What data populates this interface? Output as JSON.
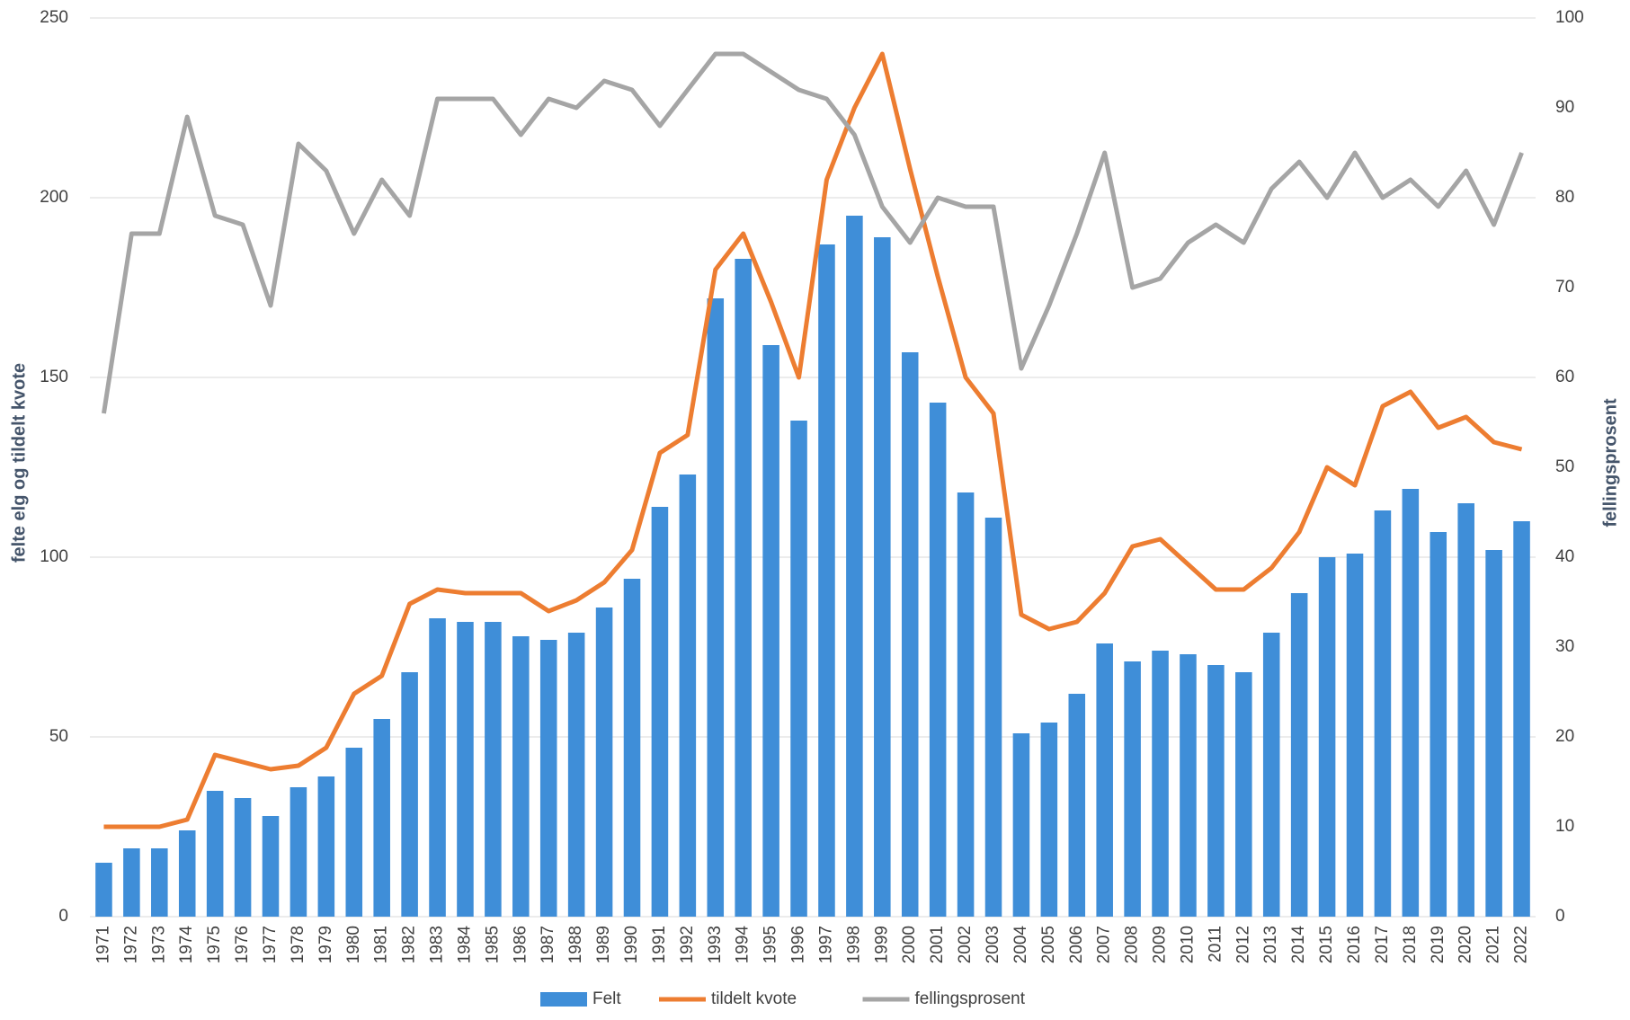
{
  "chart_data": {
    "type": "bar",
    "ylabel": "felte elg og tildelt kvote",
    "y2label": "fellingsprosent",
    "categories": [
      "1971",
      "1972",
      "1973",
      "1974",
      "1975",
      "1976",
      "1977",
      "1978",
      "1979",
      "1980",
      "1981",
      "1982",
      "1983",
      "1984",
      "1985",
      "1986",
      "1987",
      "1988",
      "1989",
      "1990",
      "1991",
      "1992",
      "1993",
      "1994",
      "1995",
      "1996",
      "1997",
      "1998",
      "1999",
      "2000",
      "2001",
      "2002",
      "2003",
      "2004",
      "2005",
      "2006",
      "2007",
      "2008",
      "2009",
      "2010",
      "2011",
      "2012",
      "2013",
      "2014",
      "2015",
      "2016",
      "2017",
      "2018",
      "2019",
      "2020",
      "2021",
      "2022"
    ],
    "series": [
      {
        "name": "Felt",
        "type": "bar",
        "color": "#3f8ed8",
        "values": [
          15,
          19,
          19,
          24,
          35,
          33,
          28,
          36,
          39,
          47,
          55,
          68,
          83,
          82,
          82,
          78,
          77,
          79,
          86,
          94,
          114,
          123,
          172,
          183,
          159,
          138,
          187,
          195,
          189,
          157,
          143,
          118,
          111,
          51,
          54,
          62,
          76,
          71,
          74,
          73,
          70,
          68,
          79,
          90,
          100,
          101,
          113,
          119,
          107,
          115,
          102,
          110
        ]
      },
      {
        "name": "tildelt kvote",
        "type": "line",
        "color": "#ed7d31",
        "values": [
          25,
          25,
          25,
          27,
          45,
          43,
          41,
          42,
          47,
          62,
          67,
          87,
          91,
          90,
          90,
          90,
          85,
          88,
          93,
          102,
          129,
          134,
          180,
          190,
          171,
          150,
          205,
          225,
          240,
          208,
          178,
          150,
          140,
          84,
          80,
          82,
          90,
          103,
          105,
          98,
          91,
          91,
          97,
          107,
          125,
          120,
          142,
          146,
          136,
          139,
          132,
          130
        ]
      },
      {
        "name": "fellingsprosent",
        "type": "line",
        "color": "#a5a5a5",
        "axis": "y2",
        "values": [
          56,
          76,
          76,
          89,
          78,
          77,
          68,
          86,
          83,
          76,
          82,
          78,
          91,
          91,
          91,
          87,
          91,
          90,
          93,
          92,
          88,
          92,
          96,
          96,
          94,
          92,
          91,
          87,
          79,
          75,
          80,
          79,
          79,
          61,
          68,
          76,
          85,
          70,
          71,
          75,
          77,
          75,
          81,
          84,
          80,
          85,
          80,
          82,
          79,
          83,
          77,
          85
        ]
      }
    ],
    "ylim": [
      0,
      250
    ],
    "yticks": [
      0,
      50,
      100,
      150,
      200,
      250
    ],
    "y2lim": [
      0,
      100
    ],
    "y2ticks": [
      0,
      10,
      20,
      30,
      40,
      50,
      60,
      70,
      80,
      90,
      100
    ],
    "grid": true,
    "legend": "bottom"
  }
}
